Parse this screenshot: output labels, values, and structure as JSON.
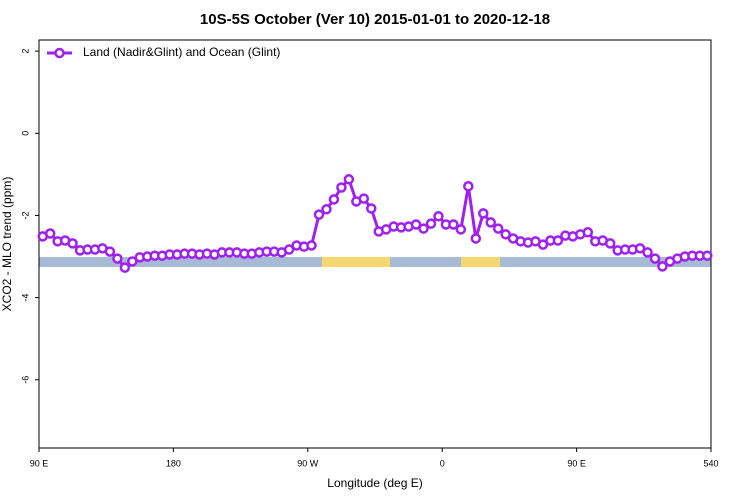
{
  "chart_data": {
    "type": "line",
    "title": "10S-5S October (Ver 10)   2015-01-01 to 2020-12-18",
    "x_label": "Longitude (deg E)",
    "y_label": "XCO2 - MLO trend (ppm)",
    "x": [
      92.5,
      97.5,
      102.5,
      107.5,
      112.5,
      117.5,
      122.5,
      127.5,
      132.5,
      137.5,
      142.5,
      147.5,
      152.5,
      157.5,
      162.5,
      167.5,
      172.5,
      177.5,
      182.5,
      187.5,
      192.5,
      197.5,
      202.5,
      207.5,
      212.5,
      217.5,
      222.5,
      227.5,
      232.5,
      237.5,
      242.5,
      247.5,
      252.5,
      257.5,
      262.5,
      267.5,
      272.5,
      277.5,
      282.5,
      287.5,
      292.5,
      297.5,
      302.5,
      307.5,
      312.5,
      317.5,
      322.5,
      327.5,
      332.5,
      337.5,
      342.5,
      347.5,
      352.5,
      357.5,
      362.5,
      367.5,
      372.5,
      377.5,
      382.5,
      387.5,
      392.5,
      397.5,
      402.5,
      407.5,
      412.5,
      417.5,
      422.5,
      427.5,
      432.5,
      437.5,
      442.5,
      447.5,
      452.5,
      457.5,
      462.5,
      467.5,
      472.5,
      477.5,
      482.5,
      487.5,
      492.5,
      497.5,
      502.5,
      507.5,
      512.5,
      517.5,
      522.5,
      527.5,
      532.5,
      537.5
    ],
    "series": [
      {
        "name": "Land (Nadir&Glint) and Ocean (Glint)",
        "color": "#a020f0",
        "values": [
          -2.51,
          -2.44,
          -2.63,
          -2.61,
          -2.68,
          -2.85,
          -2.83,
          -2.83,
          -2.8,
          -2.88,
          -3.05,
          -3.27,
          -3.12,
          -3.02,
          -3.0,
          -2.98,
          -2.98,
          -2.95,
          -2.95,
          -2.93,
          -2.93,
          -2.95,
          -2.93,
          -2.95,
          -2.9,
          -2.9,
          -2.9,
          -2.93,
          -2.93,
          -2.9,
          -2.88,
          -2.88,
          -2.9,
          -2.83,
          -2.73,
          -2.76,
          -2.73,
          -1.98,
          -1.85,
          -1.61,
          -1.32,
          -1.12,
          -1.66,
          -1.59,
          -1.83,
          -2.39,
          -2.34,
          -2.27,
          -2.29,
          -2.27,
          -2.22,
          -2.32,
          -2.2,
          -2.02,
          -2.22,
          -2.22,
          -2.34,
          -1.29,
          -2.56,
          -1.95,
          -2.17,
          -2.32,
          -2.46,
          -2.56,
          -2.63,
          -2.66,
          -2.63,
          -2.71,
          -2.61,
          -2.61,
          -2.49,
          -2.51,
          -2.46,
          -2.41,
          -2.63,
          -2.61,
          -2.68,
          -2.85,
          -2.83,
          -2.83,
          -2.8,
          -2.9,
          -3.05,
          -3.24,
          -3.12,
          -3.05,
          -3.0,
          -2.98,
          -2.98,
          -2.98
        ]
      }
    ],
    "xlim": [
      90,
      540
    ],
    "xticks": [
      {
        "value": 90,
        "label": "90 E"
      },
      180,
      {
        "value": 270,
        "label": "90 W"
      },
      {
        "value": 360,
        "label": "0"
      },
      {
        "value": 450,
        "label": "90 E"
      },
      540
    ],
    "ylim": [
      -7.66,
      2.27
    ],
    "yticks": [
      2,
      0,
      -2,
      -4,
      -6
    ],
    "legend": "top-left"
  }
}
